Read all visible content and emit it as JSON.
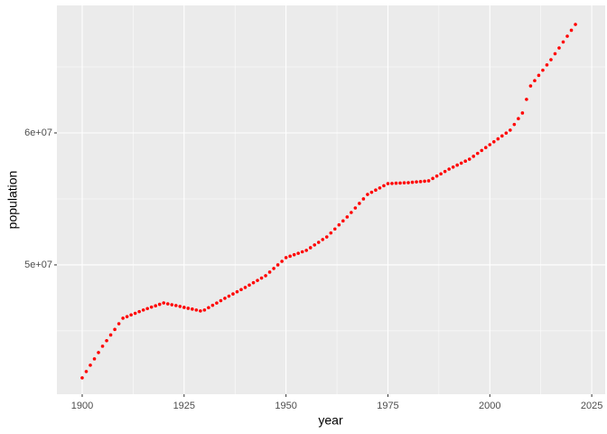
{
  "chart_data": {
    "type": "scatter",
    "x_label": "year",
    "y_label": "population",
    "x": [
      1900,
      1901,
      1902,
      1903,
      1904,
      1905,
      1906,
      1907,
      1908,
      1909,
      1910,
      1911,
      1912,
      1913,
      1914,
      1915,
      1916,
      1917,
      1918,
      1919,
      1920,
      1921,
      1922,
      1923,
      1924,
      1925,
      1926,
      1927,
      1928,
      1929,
      1930,
      1931,
      1932,
      1933,
      1934,
      1935,
      1936,
      1937,
      1938,
      1939,
      1940,
      1941,
      1942,
      1943,
      1944,
      1945,
      1946,
      1947,
      1948,
      1949,
      1950,
      1951,
      1952,
      1953,
      1954,
      1955,
      1956,
      1957,
      1958,
      1959,
      1960,
      1961,
      1962,
      1963,
      1964,
      1965,
      1966,
      1967,
      1968,
      1969,
      1970,
      1971,
      1972,
      1973,
      1974,
      1975,
      1976,
      1977,
      1978,
      1979,
      1980,
      1981,
      1982,
      1983,
      1984,
      1985,
      1986,
      1987,
      1988,
      1989,
      1990,
      1991,
      1992,
      1993,
      1994,
      1995,
      1996,
      1997,
      1998,
      1999,
      2000,
      2001,
      2002,
      2003,
      2004,
      2005,
      2006,
      2007,
      2008,
      2009,
      2010,
      2011,
      2012,
      2013,
      2014,
      2015,
      2016,
      2017,
      2018,
      2019,
      2020,
      2021
    ],
    "values": [
      41440000.0,
      41920000.0,
      42400000.0,
      42880000.0,
      43360000.0,
      43840000.0,
      44260000.0,
      44690000.0,
      45110000.0,
      45540000.0,
      45960000.0,
      46080000.0,
      46210000.0,
      46330000.0,
      46460000.0,
      46580000.0,
      46690000.0,
      46800000.0,
      46900000.0,
      47010000.0,
      47120000.0,
      47050000.0,
      46980000.0,
      46920000.0,
      46850000.0,
      46780000.0,
      46710000.0,
      46650000.0,
      46580000.0,
      46510000.0,
      46580000.0,
      46760000.0,
      46940000.0,
      47110000.0,
      47290000.0,
      47470000.0,
      47630000.0,
      47800000.0,
      47960000.0,
      48130000.0,
      48290000.0,
      48470000.0,
      48650000.0,
      48820000.0,
      49000000.0,
      49180000.0,
      49450000.0,
      49730000.0,
      50000000.0,
      50270000.0,
      50550000.0,
      50660000.0,
      50770000.0,
      50880000.0,
      50990000.0,
      51100000.0,
      51300000.0,
      51510000.0,
      51710000.0,
      51920000.0,
      52120000.0,
      52420000.0,
      52720000.0,
      53030000.0,
      53330000.0,
      53630000.0,
      53970000.0,
      54310000.0,
      54660000.0,
      55000000.0,
      55340000.0,
      55500000.0,
      55670000.0,
      55830000.0,
      56000000.0,
      56160000.0,
      56170000.0,
      56190000.0,
      56200000.0,
      56220000.0,
      56230000.0,
      56260000.0,
      56290000.0,
      56310000.0,
      56340000.0,
      56370000.0,
      56550000.0,
      56730000.0,
      56900000.0,
      57080000.0,
      57260000.0,
      57410000.0,
      57560000.0,
      57710000.0,
      57860000.0,
      58010000.0,
      58230000.0,
      58450000.0,
      58670000.0,
      58890000.0,
      59110000.0,
      59330000.0,
      59550000.0,
      59770000.0,
      59990000.0,
      60210000.0,
      60640000.0,
      61080000.0,
      61510000.0,
      62540000.0,
      63560000.0,
      63960000.0,
      64360000.0,
      64750000.0,
      65150000.0,
      65550000.0,
      66000000.0,
      66440000.0,
      66890000.0,
      67330000.0,
      67780000.0,
      68220000.0
    ],
    "color": "#ff0000",
    "xlim": [
      1893.8,
      2028.3
    ],
    "xticks": [
      1900,
      1925,
      1950,
      1975,
      2000,
      2025
    ],
    "ylim": [
      40200000.0,
      69660000.0
    ],
    "yticks": [
      {
        "value": 50000000,
        "label": "5e+07"
      },
      {
        "value": 60000000,
        "label": "6e+07"
      }
    ],
    "grid": true,
    "minor_grid": true
  }
}
